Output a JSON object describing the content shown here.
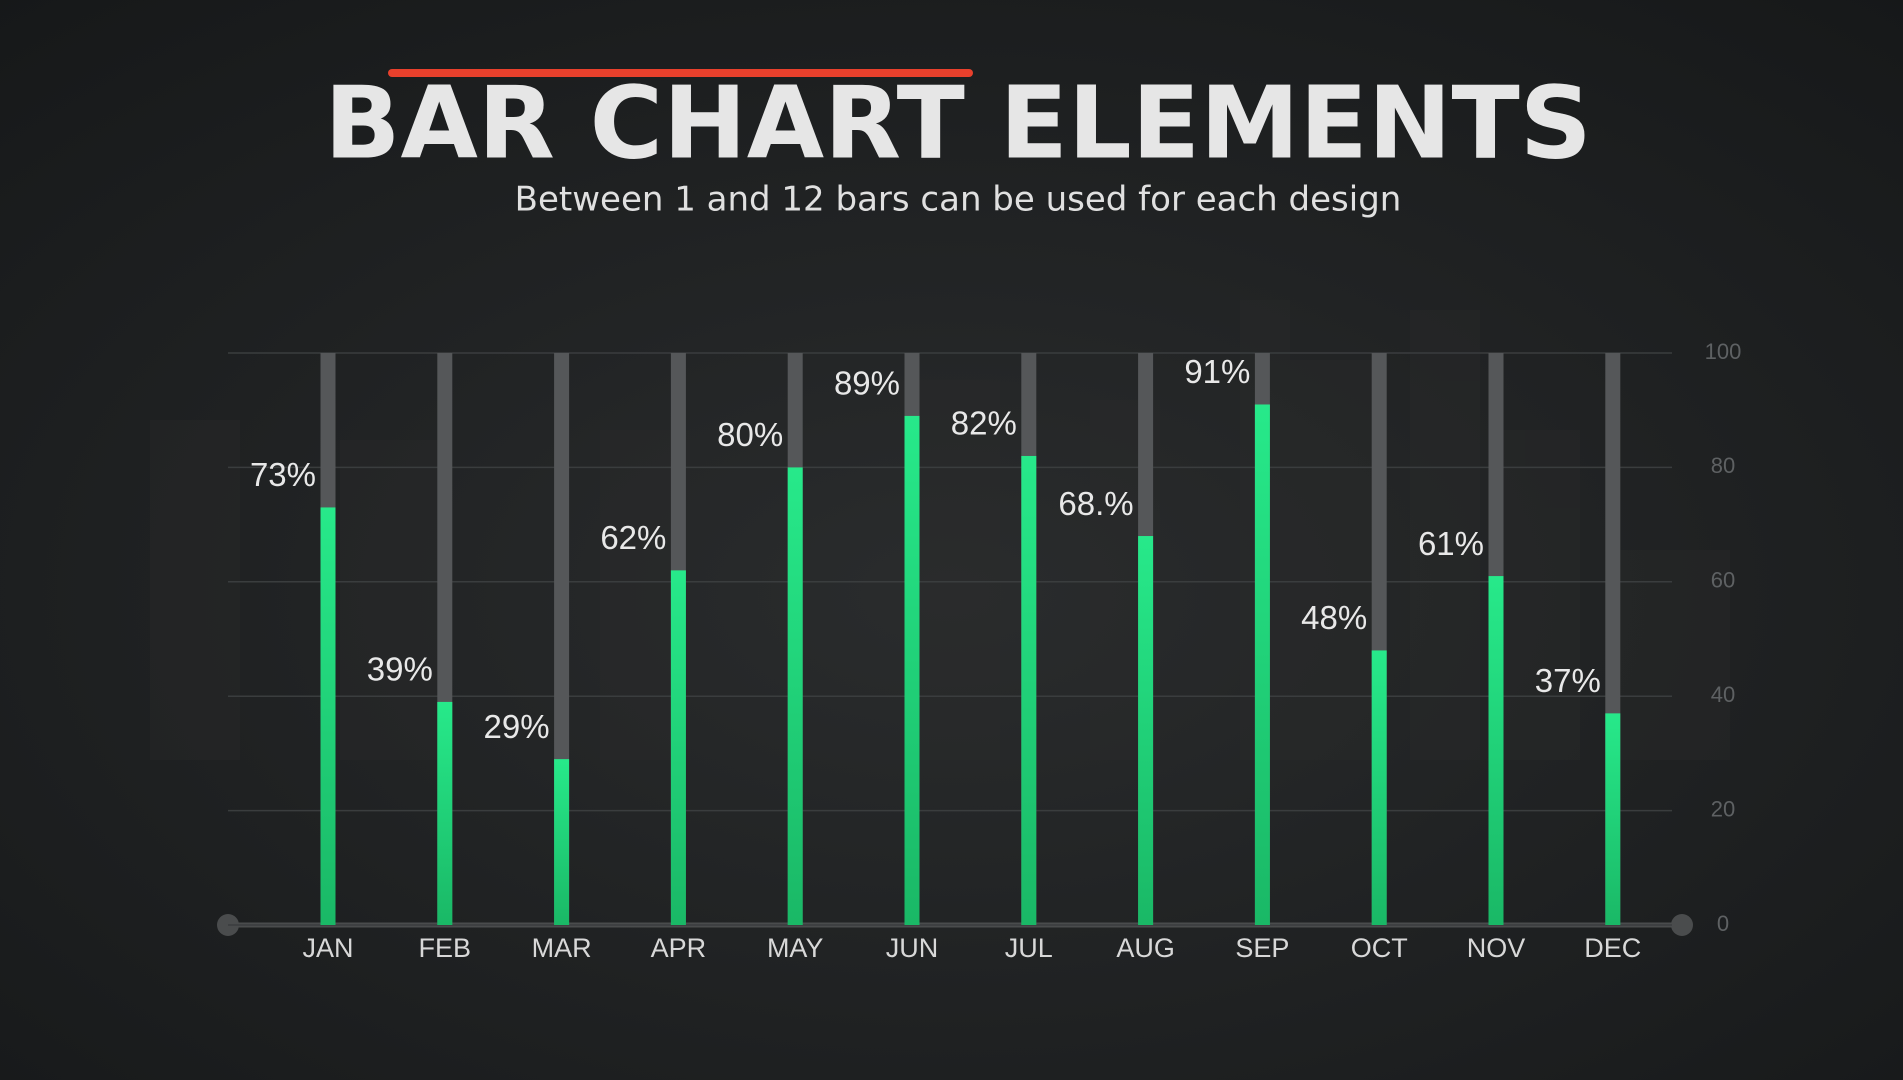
{
  "chart_data": {
    "type": "bar",
    "title": "BAR CHART ELEMENTS",
    "subtitle": "Between 1 and 12 bars can be used for each design",
    "categories": [
      "JAN",
      "FEB",
      "MAR",
      "APR",
      "MAY",
      "JUN",
      "JUL",
      "AUG",
      "SEP",
      "OCT",
      "NOV",
      "DEC"
    ],
    "values": [
      73,
      39,
      29,
      62,
      80,
      89,
      82,
      68,
      91,
      48,
      61,
      37
    ],
    "value_labels": [
      "73%",
      "39%",
      "29%",
      "62%",
      "80%",
      "89%",
      "82%",
      "68.%",
      "91%",
      "48%",
      "61%",
      "37%"
    ],
    "color": "#1fd87a",
    "ylim": [
      0,
      100
    ],
    "yticks": [
      0,
      20,
      40,
      60,
      80,
      100
    ],
    "grid": true
  }
}
